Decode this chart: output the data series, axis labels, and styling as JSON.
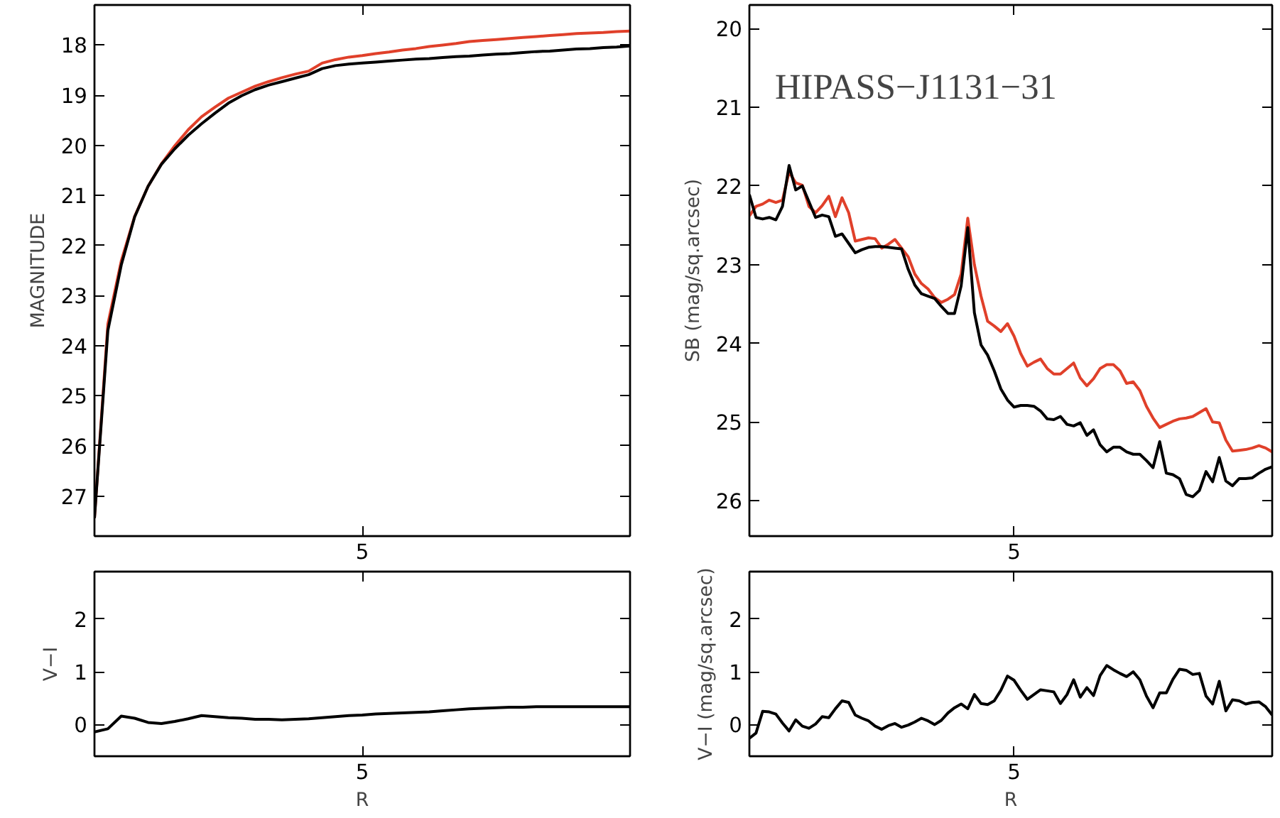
{
  "chart_data": [
    {
      "type": "line",
      "ylabel": "MAGNITUDE",
      "ylim": [
        27.8,
        17.2
      ],
      "yticks": [
        18,
        19,
        20,
        21,
        22,
        23,
        24,
        25,
        26,
        27
      ],
      "grid": false,
      "categories": [
        null,
        null,
        null,
        null,
        null,
        null,
        null,
        null,
        null,
        null,
        null,
        null,
        null,
        null,
        null,
        null,
        null,
        null,
        null,
        null,
        "5",
        null,
        null,
        null,
        null,
        null,
        null,
        null,
        null,
        null,
        null,
        null,
        null,
        null,
        null,
        null,
        null,
        null,
        null,
        null,
        null
      ],
      "series": [
        {
          "color": "#e0402a",
          "values": [
            27.44,
            23.57,
            22.31,
            21.42,
            20.82,
            20.37,
            20.01,
            19.69,
            19.43,
            19.24,
            19.06,
            18.94,
            18.82,
            18.73,
            18.65,
            18.58,
            18.52,
            18.36,
            18.29,
            18.24,
            18.21,
            18.17,
            18.14,
            18.1,
            18.07,
            18.03,
            18.0,
            17.97,
            17.93,
            17.91,
            17.89,
            17.87,
            17.85,
            17.83,
            17.81,
            17.79,
            17.77,
            17.76,
            17.75,
            17.73,
            17.72
          ]
        },
        {
          "color": "#000000",
          "values": [
            27.44,
            23.7,
            22.39,
            21.43,
            20.82,
            20.38,
            20.07,
            19.8,
            19.57,
            19.36,
            19.16,
            19.01,
            18.89,
            18.8,
            18.73,
            18.66,
            18.59,
            18.47,
            18.41,
            18.38,
            18.36,
            18.34,
            18.32,
            18.3,
            18.28,
            18.27,
            18.25,
            18.23,
            18.22,
            18.2,
            18.18,
            18.17,
            18.15,
            18.13,
            18.12,
            18.1,
            18.08,
            18.07,
            18.05,
            18.04,
            18.02
          ]
        }
      ]
    },
    {
      "type": "line",
      "xlabel": "R",
      "ylabel": "V−I",
      "ylim": [
        -0.6,
        2.9
      ],
      "yticks": [
        0,
        1,
        2
      ],
      "grid": false,
      "categories": [
        null,
        null,
        null,
        null,
        null,
        null,
        null,
        null,
        null,
        null,
        null,
        null,
        null,
        null,
        null,
        null,
        null,
        null,
        null,
        null,
        "5",
        null,
        null,
        null,
        null,
        null,
        null,
        null,
        null,
        null,
        null,
        null,
        null,
        null,
        null,
        null,
        null,
        null,
        null,
        null,
        null
      ],
      "series": [
        {
          "color": "#000000",
          "values": [
            -0.14,
            -0.08,
            0.16,
            0.12,
            0.04,
            0.02,
            0.06,
            0.11,
            0.17,
            0.15,
            0.13,
            0.12,
            0.1,
            0.1,
            0.09,
            0.1,
            0.11,
            0.13,
            0.15,
            0.17,
            0.18,
            0.2,
            0.21,
            0.22,
            0.23,
            0.24,
            0.26,
            0.28,
            0.3,
            0.31,
            0.32,
            0.33,
            0.33,
            0.34,
            0.34,
            0.34,
            0.34,
            0.34,
            0.34,
            0.34,
            0.34
          ]
        }
      ]
    },
    {
      "type": "line",
      "ylabel": "SB (mag/sq.arcsec)",
      "ylim": [
        26.45,
        19.7
      ],
      "yticks": [
        20,
        21,
        22,
        23,
        24,
        25,
        26
      ],
      "grid": false,
      "annotations": [
        "HIPASS−J1131−31"
      ],
      "categories": [
        null,
        null,
        null,
        null,
        null,
        null,
        null,
        null,
        null,
        null,
        null,
        null,
        null,
        null,
        null,
        null,
        null,
        null,
        null,
        null,
        null,
        null,
        null,
        null,
        null,
        null,
        null,
        null,
        null,
        null,
        null,
        null,
        null,
        null,
        null,
        null,
        null,
        null,
        null,
        null,
        "5",
        null,
        null,
        null,
        null,
        null,
        null,
        null,
        null,
        null,
        null,
        null,
        null,
        null,
        null,
        null,
        null,
        null,
        null,
        null,
        null,
        null,
        null,
        null,
        null,
        null,
        null,
        null,
        null,
        null,
        null,
        null,
        null,
        null,
        null,
        null,
        null,
        null,
        null,
        null
      ],
      "series": [
        {
          "color": "#e0402a",
          "values": [
            22.38,
            22.26,
            22.23,
            22.18,
            22.21,
            22.18,
            21.82,
            21.96,
            21.99,
            22.26,
            22.34,
            22.25,
            22.13,
            22.39,
            22.15,
            22.34,
            22.7,
            22.68,
            22.66,
            22.67,
            22.79,
            22.74,
            22.68,
            22.79,
            22.9,
            23.12,
            23.24,
            23.31,
            23.42,
            23.48,
            23.44,
            23.38,
            23.12,
            22.41,
            23.0,
            23.4,
            23.72,
            23.78,
            23.85,
            23.75,
            23.91,
            24.13,
            24.29,
            24.24,
            24.2,
            24.32,
            24.39,
            24.39,
            24.32,
            24.25,
            24.44,
            24.54,
            24.45,
            24.32,
            24.27,
            24.27,
            24.35,
            24.51,
            24.49,
            24.6,
            24.8,
            24.95,
            25.07,
            25.03,
            24.99,
            24.96,
            24.95,
            24.93,
            24.88,
            24.83,
            25.0,
            25.01,
            25.23,
            25.37,
            25.36,
            25.35,
            25.33,
            25.3,
            25.33,
            25.38
          ]
        },
        {
          "color": "#000000",
          "values": [
            22.11,
            22.4,
            22.42,
            22.4,
            22.43,
            22.26,
            21.74,
            22.05,
            22.0,
            22.2,
            22.4,
            22.37,
            22.39,
            22.64,
            22.61,
            22.73,
            22.85,
            22.81,
            22.78,
            22.77,
            22.77,
            22.78,
            22.79,
            22.8,
            23.06,
            23.26,
            23.37,
            23.4,
            23.43,
            23.53,
            23.62,
            23.62,
            23.27,
            22.53,
            23.61,
            24.02,
            24.15,
            24.35,
            24.58,
            24.72,
            24.81,
            24.79,
            24.79,
            24.8,
            24.86,
            24.96,
            24.97,
            24.93,
            25.03,
            25.05,
            25.01,
            25.17,
            25.1,
            25.29,
            25.38,
            25.32,
            25.32,
            25.38,
            25.41,
            25.41,
            25.49,
            25.58,
            25.25,
            25.65,
            25.67,
            25.72,
            25.92,
            25.95,
            25.87,
            25.63,
            25.76,
            25.45,
            25.75,
            25.81,
            25.72,
            25.72,
            25.71,
            25.65,
            25.6,
            25.57
          ]
        }
      ]
    },
    {
      "type": "line",
      "xlabel": "R",
      "ylabel": "V−I (mag/sq.arcsec)",
      "ylim": [
        -0.6,
        2.9
      ],
      "yticks": [
        0,
        1,
        2
      ],
      "grid": false,
      "categories": [
        null,
        null,
        null,
        null,
        null,
        null,
        null,
        null,
        null,
        null,
        null,
        null,
        null,
        null,
        null,
        null,
        null,
        null,
        null,
        null,
        null,
        null,
        null,
        null,
        null,
        null,
        null,
        null,
        null,
        null,
        null,
        null,
        null,
        null,
        null,
        null,
        null,
        null,
        null,
        null,
        "5",
        null,
        null,
        null,
        null,
        null,
        null,
        null,
        null,
        null,
        null,
        null,
        null,
        null,
        null,
        null,
        null,
        null,
        null,
        null,
        null,
        null,
        null,
        null,
        null,
        null,
        null,
        null,
        null,
        null,
        null,
        null,
        null,
        null,
        null,
        null,
        null,
        null,
        null,
        null
      ],
      "series": [
        {
          "color": "#000000",
          "values": [
            -0.26,
            -0.16,
            0.25,
            0.24,
            0.2,
            0.03,
            -0.12,
            0.09,
            -0.03,
            -0.07,
            0.01,
            0.15,
            0.13,
            0.3,
            0.45,
            0.42,
            0.18,
            0.12,
            0.07,
            -0.03,
            -0.09,
            -0.02,
            0.02,
            -0.05,
            -0.01,
            0.05,
            0.12,
            0.07,
            0.0,
            0.08,
            0.22,
            0.32,
            0.39,
            0.3,
            0.57,
            0.4,
            0.38,
            0.45,
            0.65,
            0.92,
            0.84,
            0.65,
            0.48,
            0.57,
            0.66,
            0.64,
            0.62,
            0.4,
            0.57,
            0.85,
            0.52,
            0.7,
            0.55,
            0.93,
            1.12,
            1.04,
            0.97,
            0.91,
            1.0,
            0.85,
            0.54,
            0.32,
            0.6,
            0.6,
            0.86,
            1.05,
            1.03,
            0.95,
            0.97,
            0.54,
            0.39,
            0.82,
            0.26,
            0.47,
            0.45,
            0.39,
            0.42,
            0.43,
            0.34,
            0.18
          ]
        }
      ]
    }
  ]
}
